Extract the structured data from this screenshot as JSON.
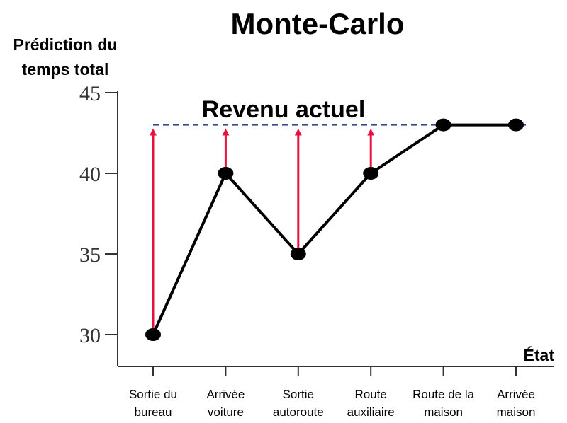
{
  "chart_data": {
    "type": "line",
    "title": "Monte-Carlo",
    "ylabel": [
      "Prédiction du",
      "temps total"
    ],
    "xlabel": "État",
    "ylim": [
      28,
      45
    ],
    "yticks": [
      30,
      35,
      40,
      45
    ],
    "categories": [
      [
        "Sortie du",
        "bureau"
      ],
      [
        "Arrivée",
        "voiture"
      ],
      [
        "Sortie",
        "autoroute"
      ],
      [
        "Route",
        "auxiliaire"
      ],
      [
        "Route de la",
        "maison"
      ],
      [
        "Arrivée",
        "maison"
      ]
    ],
    "series": [
      {
        "values": [
          30,
          40,
          35,
          40,
          43,
          43
        ]
      }
    ],
    "reference_line": {
      "label": "Revenu actuel",
      "value": 43
    },
    "arrows_from_indices": [
      0,
      1,
      2,
      3
    ],
    "colors": {
      "line": "#000000",
      "reference": "#3a4a8a",
      "arrow": "#e8103c",
      "axis": "#333333"
    },
    "grid": false
  }
}
